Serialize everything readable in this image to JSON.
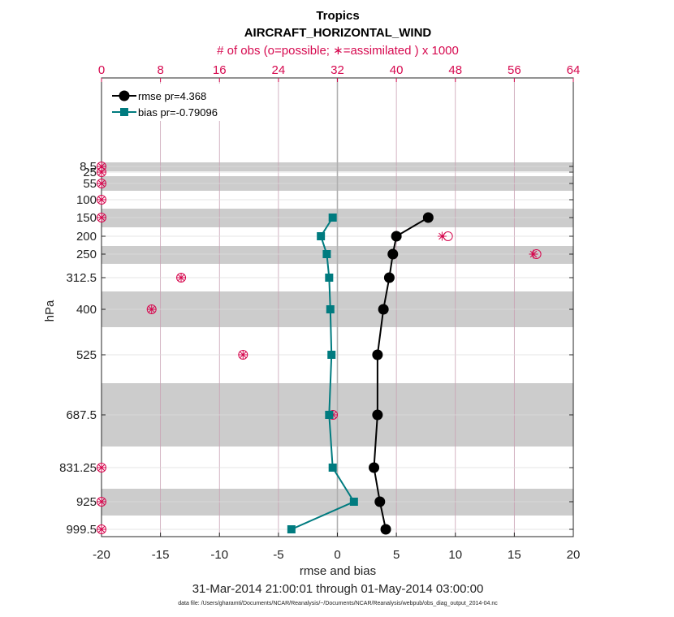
{
  "chart_data": {
    "type": "line",
    "title": "Tropics",
    "subtitle": "AIRCRAFT_HORIZONTAL_WIND",
    "top_axis_label": "# of obs (o=possible; ∗=assimilated ) x 1000",
    "xlabel": "rmse and bias",
    "ylabel": "hPa",
    "date_range": "31-Mar-2014 21:00:01 through 01-May-2014 03:00:00",
    "data_file": "data file: /Users/gharamti/Documents/NCAR/Reanalysis/~/Documents/NCAR/Reanalysis/webpub/obs_diag_output_2014-04.nc",
    "xlim": [
      -20,
      20
    ],
    "x_ticks": [
      -20,
      -15,
      -10,
      -5,
      0,
      5,
      10,
      15,
      20
    ],
    "x_tick_labels": [
      "-20",
      "-15",
      "-10",
      "-5",
      "0",
      "5",
      "10",
      "15",
      "20"
    ],
    "top_xlim": [
      0,
      64
    ],
    "top_ticks": [
      0,
      8,
      16,
      24,
      32,
      40,
      48,
      56,
      64
    ],
    "top_tick_labels": [
      "0",
      "8",
      "16",
      "24",
      "32",
      "40",
      "48",
      "56",
      "64"
    ],
    "levels": [
      8.5,
      25,
      55,
      100,
      150,
      200,
      250,
      312.5,
      400,
      525,
      687.5,
      831.25,
      925,
      999.5
    ],
    "level_labels": [
      "8.5",
      "25",
      "55",
      "100",
      "150",
      "200",
      "250",
      "312.5",
      "400",
      "525",
      "687.5",
      "831.25",
      "925",
      "999.5"
    ],
    "series": [
      {
        "name": "rmse",
        "legend": "rmse pr=4.368",
        "color": "#000000",
        "marker": "circle",
        "levels": [
          150,
          200,
          250,
          312.5,
          400,
          525,
          687.5,
          831.25,
          925,
          999.5
        ],
        "values": [
          7.7,
          5.0,
          4.7,
          4.4,
          3.9,
          3.4,
          3.4,
          3.1,
          3.6,
          4.1
        ]
      },
      {
        "name": "bias",
        "legend": "bias pr=-0.79096",
        "color": "#007b7f",
        "marker": "square",
        "levels": [
          150,
          200,
          250,
          312.5,
          400,
          525,
          687.5,
          831.25,
          925,
          999.5
        ],
        "values": [
          -0.4,
          -1.4,
          -0.9,
          -0.7,
          -0.6,
          -0.5,
          -0.7,
          -0.4,
          1.4,
          -3.9
        ]
      }
    ],
    "obs_counts": {
      "color": "#d6094f",
      "unit": "x1000",
      "levels": [
        8.5,
        25,
        55,
        100,
        150,
        200,
        250,
        312.5,
        400,
        525,
        687.5,
        831.25,
        925,
        999.5
      ],
      "possible": [
        0,
        0,
        0,
        0,
        0,
        47,
        59,
        10.8,
        6.8,
        19.2,
        31.4,
        0,
        0,
        0
      ],
      "assimilated": [
        0,
        0,
        0,
        0,
        0,
        46.2,
        58.6,
        10.8,
        6.8,
        19.2,
        31.4,
        0,
        0,
        0
      ]
    },
    "shaded_bands": [
      [
        8.5,
        8.5
      ],
      [
        25,
        25
      ],
      [
        55,
        55
      ],
      [
        150,
        150
      ],
      [
        250,
        250
      ],
      [
        400,
        400
      ],
      [
        687.5,
        687.5
      ],
      [
        925,
        925
      ]
    ],
    "grid": true,
    "legend_position": "top-left"
  }
}
